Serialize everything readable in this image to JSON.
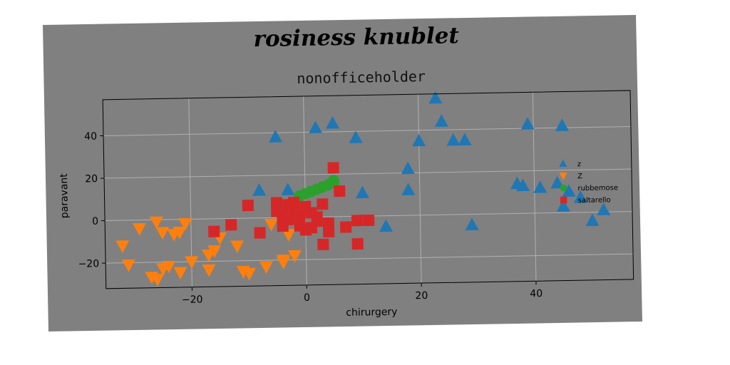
{
  "chart_data": {
    "type": "scatter",
    "suptitle": "rosiness knublet",
    "title": "nonofficeholder",
    "xlabel": "chirurgery",
    "ylabel": "paravant",
    "xlim": [
      -35,
      57
    ],
    "ylim": [
      -32,
      57
    ],
    "xticks": [
      -20,
      0,
      20,
      40
    ],
    "yticks": [
      -20,
      0,
      20,
      40
    ],
    "grid": true,
    "legend_position": "right",
    "series": [
      {
        "name": "z",
        "marker": "triangle-up",
        "color": "#1f77b4",
        "x": [
          -5,
          -8,
          -3,
          2,
          5,
          9,
          10,
          14,
          18,
          18,
          20,
          23,
          24,
          26,
          28,
          29,
          37,
          38,
          39,
          41,
          44,
          45,
          45,
          46,
          48,
          50,
          52
        ],
        "y": [
          38,
          13,
          13,
          42,
          44,
          37,
          11,
          -5,
          12,
          22,
          35,
          55,
          44,
          35,
          35,
          -5,
          14,
          13,
          42,
          12,
          14,
          3,
          41,
          10,
          7,
          -4,
          1
        ]
      },
      {
        "name": "Z",
        "marker": "triangle-down",
        "color": "#ff7f0e",
        "x": [
          -32,
          -31,
          -29,
          -27,
          -26,
          -26,
          -25,
          -25,
          -24,
          -23,
          -22,
          -22,
          -21,
          -20,
          -17,
          -17,
          -16,
          -15,
          -12,
          -11,
          -10,
          -7,
          -6,
          -4,
          -4,
          -3,
          -2
        ],
        "y": [
          -12,
          -21,
          -4,
          -27,
          -28,
          -1,
          -6,
          -23,
          -22,
          -7,
          -6,
          -25,
          -2,
          -20,
          -17,
          -24,
          -15,
          -9,
          -13,
          -25,
          -26,
          -23,
          -3,
          -21,
          -20,
          -8,
          -18
        ]
      },
      {
        "name": "rubbemose",
        "marker": "circle",
        "color": "#2ca02c",
        "x": [
          -1,
          0,
          1,
          2,
          3,
          4,
          5,
          5
        ],
        "y": [
          10,
          11,
          12,
          13,
          14,
          15,
          16,
          17
        ]
      },
      {
        "name": "saltarello",
        "marker": "square",
        "color": "#d62728",
        "x": [
          -16,
          -13,
          -10,
          -8,
          -5,
          -5,
          -4,
          -4,
          -3,
          -3,
          -2,
          -2,
          -1,
          -1,
          0,
          0,
          1,
          1,
          2,
          2,
          3,
          3,
          4,
          4,
          5,
          6,
          7,
          9,
          9,
          11
        ],
        "y": [
          -6,
          -3,
          6,
          -7,
          7,
          3,
          1,
          -4,
          6,
          -1,
          7,
          3,
          1,
          -4,
          -6,
          5,
          2,
          -5,
          0,
          -2,
          6,
          -13,
          -7,
          -3,
          23,
          12,
          -5,
          -13,
          -2,
          -2
        ]
      }
    ]
  }
}
